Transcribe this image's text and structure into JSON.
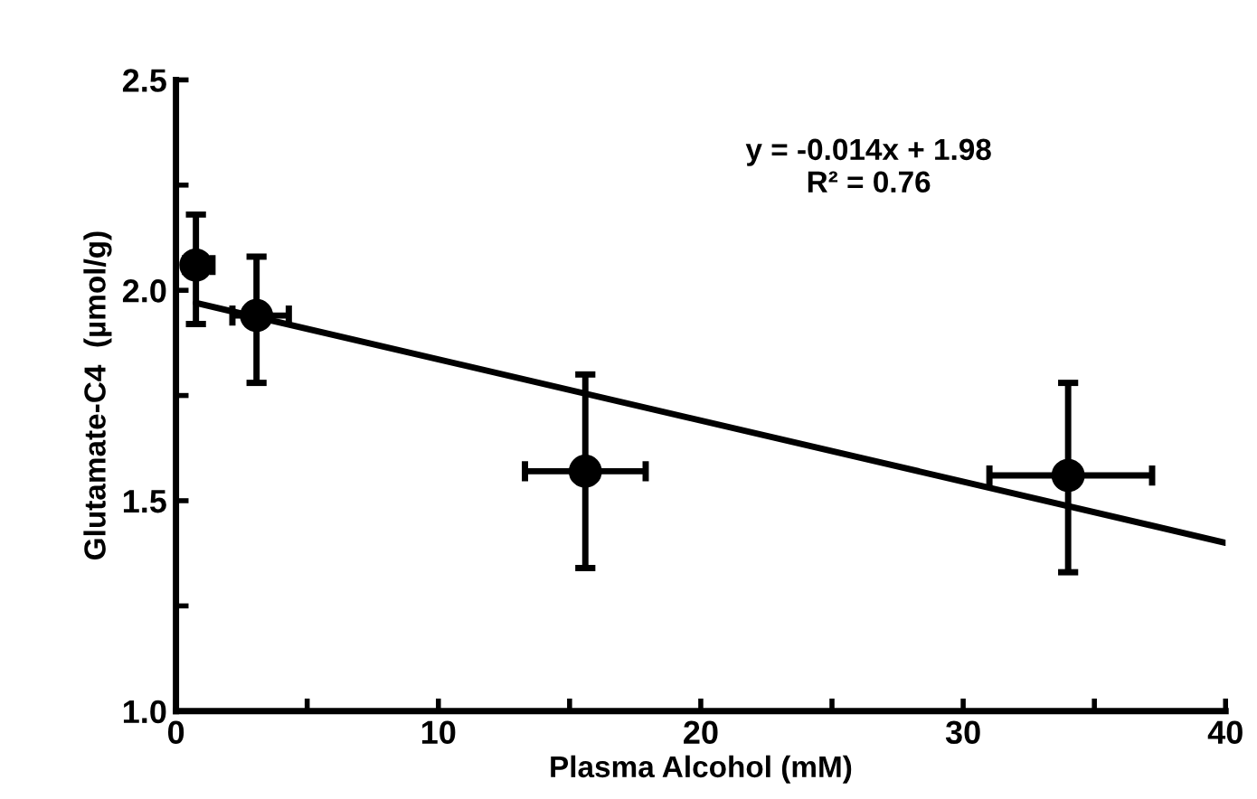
{
  "chart_data": {
    "type": "scatter",
    "xlabel": "Plasma Alcohol (mM)",
    "ylabel": "Glutamate-C4  (µmol/g)",
    "annotations": [
      "y = -0.014x + 1.98\nR² = 0.76"
    ],
    "xlim": [
      0,
      40
    ],
    "ylim": [
      1.0,
      2.5
    ],
    "xticks": [
      0,
      {
        "value": 5,
        "label": null
      },
      10,
      {
        "value": 15,
        "label": null
      },
      20,
      {
        "value": 25,
        "label": null
      },
      30,
      {
        "value": 35,
        "label": null
      },
      40
    ],
    "yticks": [
      {
        "value": 1.0,
        "label": "1.0"
      },
      {
        "value": 1.25,
        "label": null
      },
      {
        "value": 1.5,
        "label": "1.5"
      },
      {
        "value": 1.75,
        "label": null
      },
      {
        "value": 2.0,
        "label": "2.0"
      },
      {
        "value": 2.25,
        "label": null
      },
      {
        "value": 2.5,
        "label": "2.5"
      }
    ],
    "grid": false,
    "legend": false,
    "series": [
      {
        "color": "#000000",
        "marker": "circle",
        "x": [
          0.76,
          3.07,
          15.6,
          34.0
        ],
        "values": [
          2.06,
          1.94,
          1.57,
          1.56
        ],
        "errors": [
          [
            1.92,
            2.18
          ],
          [
            1.78,
            2.08
          ],
          [
            1.34,
            1.8
          ],
          [
            1.33,
            1.78
          ]
        ],
        "xerrors": [
          [
            0.35,
            1.39
          ],
          [
            2.15,
            4.3
          ],
          [
            13.3,
            17.9
          ],
          [
            31.0,
            37.2
          ]
        ]
      },
      {
        "type": "line",
        "color": "#000000",
        "marker": "none",
        "line_style": "solid",
        "x": [
          0.76,
          40
        ],
        "values": [
          1.97,
          1.4
        ]
      }
    ]
  }
}
